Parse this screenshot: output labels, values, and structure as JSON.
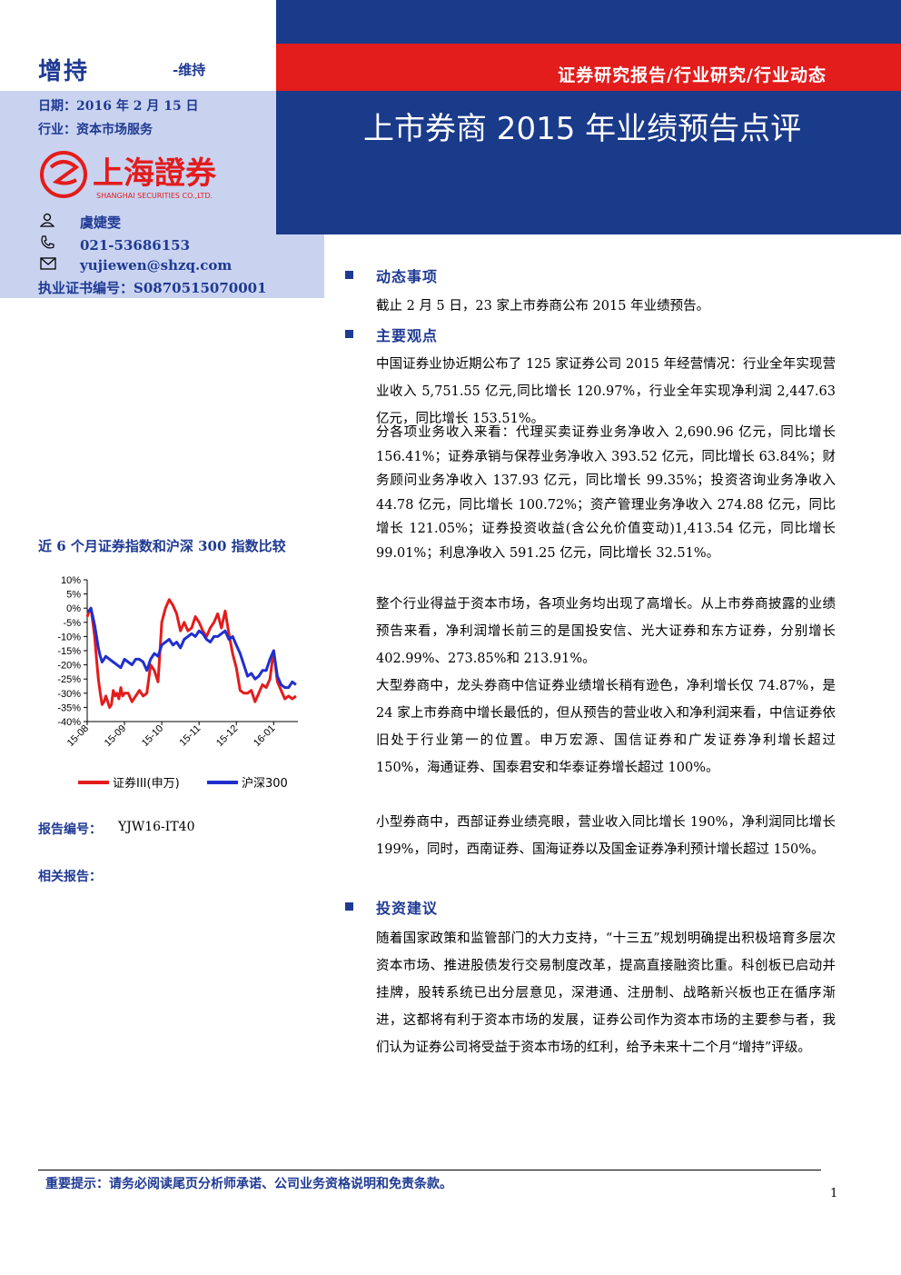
{
  "header": {
    "rating": "增持",
    "rating_sub": "-维持",
    "date_line": "日期：2016 年 2 月 15 日",
    "industry_line": "行业：资本市场服务",
    "logo_text": "上海證券",
    "logo_en": "SHANGHAI SECURITIES CO.,LTD.",
    "report_type": "证券研究报告/行业研究/行业动态",
    "title": "上市券商 2015 年业绩预告点评",
    "colors": {
      "navy": "#1a3a8a",
      "red": "#e31c1c",
      "light_blue": "#c9d3f0",
      "text_blue": "#1f3a93"
    }
  },
  "analyst": {
    "name": "虞婕雯",
    "phone": "021-53686153",
    "email": "yujiewen@shzq.com",
    "cert": "执业证书编号：S0870515070001",
    "icons": [
      "person-icon",
      "phone-icon",
      "mail-icon"
    ]
  },
  "sections": {
    "s1": {
      "title": "动态事项",
      "paras": [
        "截止 2 月 5 日，23 家上市券商公布 2015 年业绩预告。"
      ]
    },
    "s2": {
      "title": "主要观点",
      "paras": [
        "中国证券业协近期公布了 125 家证券公司 2015 年经营情况：行业全年实现营业收入 5,751.55 亿元,同比增长 120.97%，行业全年实现净利润 2,447.63 亿元，同比增长 153.51%。",
        "分各项业务收入来看：代理买卖证券业务净收入 2,690.96 亿元，同比增长 156.41%；证券承销与保荐业务净收入 393.52 亿元，同比增长 63.84%；财务顾问业务净收入 137.93 亿元，同比增长 99.35%；投资咨询业务净收入 44.78 亿元，同比增长 100.72%；资产管理业务净收入 274.88 亿元，同比增长 121.05%；证券投资收益(含公允价值变动)1,413.54 亿元，同比增长 99.01%；利息净收入 591.25 亿元，同比增长 32.51%。",
        "整个行业得益于资本市场，各项业务均出现了高增长。从上市券商披露的业绩预告来看，净利润增长前三的是国投安信、光大证券和东方证券，分别增长 402.99%、273.85%和 213.91%。",
        "大型券商中，龙头券商中信证券业绩增长稍有逊色，净利增长仅 74.87%，是 24 家上市券商中增长最低的，但从预告的营业收入和净利润来看，中信证券依旧处于行业第一的位置。申万宏源、国信证券和广发证券净利增长超过 150%，海通证券、国泰君安和华泰证券增长超过 100%。",
        "小型券商中，西部证券业绩亮眼，营业收入同比增长 190%，净利润同比增长 199%，同时，西南证券、国海证券以及国金证券净利预计增长超过 150%。"
      ]
    },
    "s3": {
      "title": "投资建议",
      "paras": [
        "随着国家政策和监管部门的大力支持，“十三五”规划明确提出积极培育多层次资本市场、推进股债发行交易制度改革，提高直接融资比重。科创板已启动并挂牌，股转系统已出分层意见，深港通、注册制、战略新兴板也正在循序渐进，这都将有利于资本市场的发展，证券公司作为资本市场的主要参与者，我们认为证券公司将受益于资本市场的红利，给予未来十二个月“增持”评级。"
      ]
    }
  },
  "chart_title": "近 6 个月证券指数和沪深 300 指数比较",
  "chart_data": {
    "type": "line",
    "y_ticks": [
      "10%",
      "5%",
      "0%",
      "-5%",
      "-10%",
      "-15%",
      "-20%",
      "-25%",
      "-30%",
      "-35%",
      "-40%"
    ],
    "x_ticks": [
      "15-08",
      "15-09",
      "15-10",
      "15-11",
      "15-12",
      "16-01"
    ],
    "ylim": [
      -40,
      10
    ],
    "series": [
      {
        "name": "证券III(申万)",
        "color": "#e31c1c",
        "x": [
          0,
          0.05,
          0.1,
          0.15,
          0.2,
          0.25,
          0.3,
          0.35,
          0.4,
          0.45,
          0.5,
          0.55,
          0.6,
          0.65,
          0.7,
          0.75,
          0.8,
          0.85,
          0.9,
          0.95,
          1,
          1.1,
          1.2,
          1.3,
          1.4,
          1.5,
          1.6,
          1.7,
          1.8,
          1.9,
          2,
          2.1,
          2.2,
          2.3,
          2.4,
          2.5,
          2.6,
          2.7,
          2.8,
          2.9,
          3,
          3.1,
          3.2,
          3.3,
          3.4,
          3.5,
          3.6,
          3.7,
          3.8,
          3.9,
          4,
          4.1,
          4.2,
          4.3,
          4.4,
          4.5,
          4.6,
          4.7,
          4.8,
          4.9,
          5,
          5.1,
          5.2,
          5.3,
          5.4,
          5.5,
          5.6
        ],
        "values": [
          -3,
          -1,
          0,
          -5,
          -10,
          -18,
          -25,
          -30,
          -34,
          -33,
          -31,
          -33,
          -35,
          -34,
          -29,
          -31,
          -30,
          -32,
          -28,
          -31,
          -30,
          -30,
          -33,
          -31,
          -29,
          -31,
          -30,
          -20,
          -22,
          -26,
          -5,
          0,
          3,
          1,
          -2,
          -8,
          -5,
          -8,
          -7,
          -3,
          -5,
          -8,
          -10,
          -7,
          -5,
          -2,
          -7,
          -1,
          -9,
          -16,
          -21,
          -29,
          -30,
          -30,
          -29,
          -33,
          -30,
          -27,
          -28,
          -25,
          -15,
          -26,
          -29,
          -32,
          -31,
          -32,
          -31
        ],
        "x_note": "x in months after 15-08"
      },
      {
        "name": "沪深300",
        "color": "#1f2fcf",
        "x": [
          0,
          0.05,
          0.1,
          0.15,
          0.2,
          0.25,
          0.3,
          0.35,
          0.4,
          0.45,
          0.5,
          0.6,
          0.7,
          0.8,
          0.9,
          1,
          1.1,
          1.2,
          1.3,
          1.4,
          1.5,
          1.6,
          1.7,
          1.8,
          1.9,
          2,
          2.1,
          2.2,
          2.3,
          2.4,
          2.5,
          2.6,
          2.7,
          2.8,
          2.9,
          3,
          3.1,
          3.2,
          3.3,
          3.4,
          3.5,
          3.6,
          3.7,
          3.8,
          3.9,
          4,
          4.1,
          4.2,
          4.3,
          4.4,
          4.5,
          4.6,
          4.7,
          4.8,
          4.9,
          5,
          5.1,
          5.2,
          5.3,
          5.4,
          5.5,
          5.6
        ],
        "values": [
          -1,
          -1,
          0,
          -3,
          -6,
          -10,
          -14,
          -17,
          -19,
          -18,
          -17,
          -18,
          -19,
          -20,
          -21,
          -18,
          -19,
          -20,
          -18,
          -18,
          -19,
          -22,
          -18,
          -16,
          -17,
          -13,
          -12,
          -11,
          -13,
          -12,
          -14,
          -11,
          -10,
          -9,
          -10,
          -8,
          -9,
          -11,
          -12,
          -10,
          -10,
          -9,
          -8,
          -11,
          -10,
          -13,
          -16,
          -20,
          -24,
          -23,
          -25,
          -24,
          -22,
          -22,
          -18,
          -15,
          -24,
          -27,
          -28,
          -28,
          -26,
          -27
        ]
      }
    ],
    "legend": "bottom"
  },
  "report_no_label": "报告编号：",
  "report_no": "YJW16-IT40",
  "related_label": "相关报告：",
  "footer_note": "重要提示：请务必阅读尾页分析师承诺、公司业务资格说明和免责条款。",
  "page_num": "1"
}
